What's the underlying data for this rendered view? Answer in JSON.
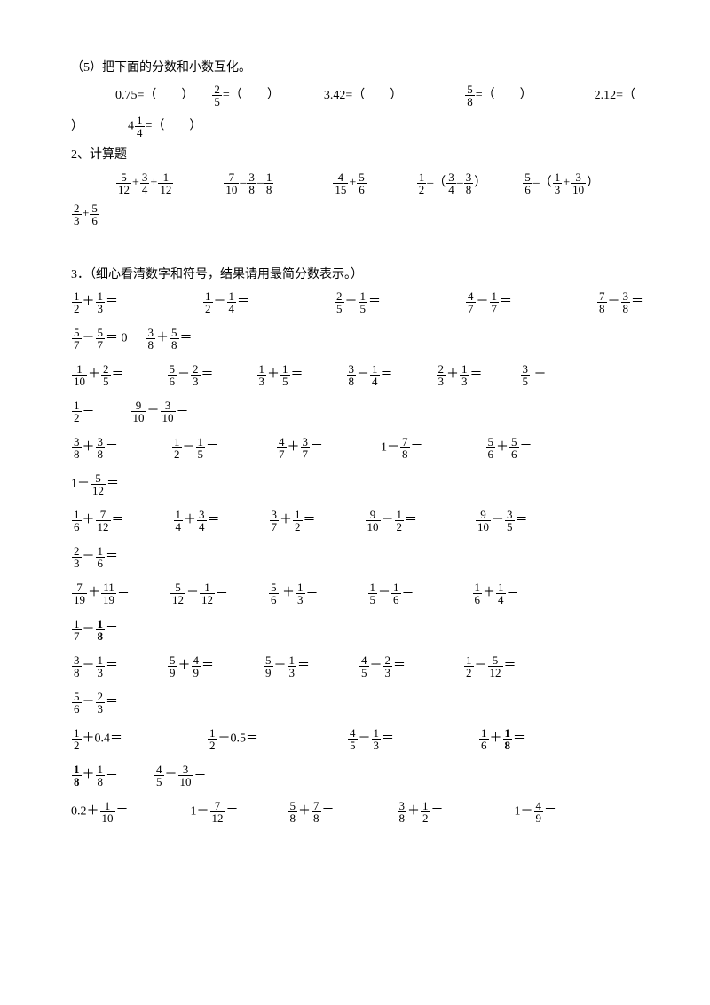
{
  "section5": {
    "title": "（5）把下面的分数和小数互化。",
    "items": [
      {
        "text_before": "0.75=（",
        "text_after": "）"
      },
      {
        "frac": {
          "n": "2",
          "d": "5"
        },
        "text_before": "",
        "text_after": "=（",
        "tail": "）"
      },
      {
        "text_before": "3.42=（",
        "text_after": "）"
      },
      {
        "frac": {
          "n": "5",
          "d": "8"
        },
        "text_before": "",
        "text_after": "=（",
        "tail": "）"
      },
      {
        "text_before": "2.12=（",
        "text_after": ""
      }
    ],
    "line2_close": "）",
    "line2_item": {
      "frac_n": "1",
      "frac_whole": "4",
      "frac_d": "4",
      "text_after": "=（",
      "tail": "）"
    }
  },
  "section2": {
    "title": "2、计算题",
    "problems": [
      [
        {
          "n": "5",
          "d": "12"
        },
        "+",
        {
          "n": "3",
          "d": "4"
        },
        "+",
        {
          "n": "1",
          "d": "12"
        }
      ],
      [
        {
          "n": "7",
          "d": "10"
        },
        "–",
        {
          "n": "3",
          "d": "8"
        },
        "–",
        {
          "n": "1",
          "d": "8"
        }
      ],
      [
        {
          "n": "4",
          "d": "15"
        },
        "+",
        {
          "n": "5",
          "d": "6"
        }
      ],
      [
        {
          "n": "1",
          "d": "2"
        },
        "–（",
        {
          "n": "3",
          "d": "4"
        },
        "–",
        {
          "n": "3",
          "d": "8"
        },
        "）"
      ],
      [
        {
          "n": "5",
          "d": "6"
        },
        "–（",
        {
          "n": "1",
          "d": "3"
        },
        "+",
        {
          "n": "3",
          "d": "10"
        },
        "）"
      ]
    ],
    "line2": [
      {
        "n": "2",
        "d": "3"
      },
      "+",
      {
        "n": "5",
        "d": "6"
      }
    ]
  },
  "section3": {
    "title": "3．（细心看清数字和符号，结果请用最简分数表示。）",
    "rows": [
      [
        [
          {
            "n": "1",
            "d": "2"
          },
          "＋",
          {
            "n": "1",
            "d": "3"
          },
          "＝"
        ],
        [
          {
            "n": "1",
            "d": "2"
          },
          "－",
          {
            "n": "1",
            "d": "4"
          },
          "＝"
        ],
        [
          {
            "n": "2",
            "d": "5"
          },
          "－",
          {
            "n": "1",
            "d": "5"
          },
          "＝"
        ],
        [
          {
            "n": "4",
            "d": "7"
          },
          "－",
          {
            "n": "1",
            "d": "7"
          },
          "＝"
        ],
        [
          {
            "n": "7",
            "d": "8"
          },
          "－",
          {
            "n": "3",
            "d": "8"
          },
          "＝"
        ]
      ],
      [
        [
          {
            "n": "5",
            "d": "7"
          },
          "－",
          {
            "n": "5",
            "d": "7"
          },
          "＝",
          "   0"
        ],
        [
          {
            "n": "3",
            "d": "8"
          },
          "＋",
          {
            "n": "5",
            "d": "8"
          },
          "＝"
        ]
      ],
      [
        [
          {
            "n": "1",
            "d": "10"
          },
          "＋",
          {
            "n": "2",
            "d": "5"
          },
          "＝"
        ],
        [
          {
            "n": "5",
            "d": "6"
          },
          "－",
          {
            "n": "2",
            "d": "3"
          },
          "＝"
        ],
        [
          {
            "n": "1",
            "d": "3"
          },
          "＋",
          {
            "n": "1",
            "d": "5"
          },
          "＝"
        ],
        [
          {
            "n": "3",
            "d": "8"
          },
          "－",
          {
            "n": "1",
            "d": "4"
          },
          "＝"
        ],
        [
          {
            "n": "2",
            "d": "3"
          },
          "＋",
          {
            "n": "1",
            "d": "3"
          },
          "＝"
        ],
        [
          {
            "n": "3",
            "d": "5"
          },
          " ＋"
        ]
      ],
      [
        [
          {
            "n": "1",
            "d": "2"
          },
          "＝"
        ],
        [
          {
            "n": "9",
            "d": "10"
          },
          "－",
          {
            "n": "3",
            "d": "10"
          },
          "＝"
        ]
      ],
      [
        [
          {
            "n": "3",
            "d": "8"
          },
          "＋",
          {
            "n": "3",
            "d": "8"
          },
          "＝"
        ],
        [
          {
            "n": "1",
            "d": "2"
          },
          "－",
          {
            "n": "1",
            "d": "5"
          },
          "＝"
        ],
        [
          {
            "n": "4",
            "d": "7"
          },
          "＋",
          {
            "n": "3",
            "d": "7"
          },
          "＝"
        ],
        [
          "1－",
          {
            "n": "7",
            "d": "8"
          },
          "＝"
        ],
        [
          {
            "n": "5",
            "d": "6"
          },
          "＋",
          {
            "n": "5",
            "d": "6"
          },
          "＝"
        ]
      ],
      [
        [
          "1－",
          {
            "n": "5",
            "d": "12"
          },
          "＝"
        ]
      ],
      [
        [
          {
            "n": "1",
            "d": "6"
          },
          "＋",
          {
            "n": "7",
            "d": "12"
          },
          "＝"
        ],
        [
          {
            "n": "1",
            "d": "4"
          },
          "＋",
          {
            "n": "3",
            "d": "4"
          },
          "＝"
        ],
        [
          {
            "n": "3",
            "d": "7"
          },
          "＋",
          {
            "n": "1",
            "d": "2"
          },
          "＝"
        ],
        [
          {
            "n": "9",
            "d": "10"
          },
          "－",
          {
            "n": "1",
            "d": "2"
          },
          "＝"
        ],
        [
          {
            "n": "9",
            "d": "10"
          },
          "－",
          {
            "n": "3",
            "d": "5"
          },
          "＝"
        ]
      ],
      [
        [
          {
            "n": "2",
            "d": "3"
          },
          "－",
          {
            "n": "1",
            "d": "6"
          },
          "＝"
        ]
      ],
      [
        [
          {
            "n": "7",
            "d": "19"
          },
          "＋",
          {
            "n": "11",
            "d": "19"
          },
          "＝"
        ],
        [
          {
            "n": "5",
            "d": "12"
          },
          "－",
          {
            "n": "1",
            "d": "12"
          },
          "＝"
        ],
        [
          {
            "n": "5",
            "d": "6"
          },
          " ＋",
          {
            "n": "1",
            "d": "3"
          },
          "＝"
        ],
        [
          {
            "n": "1",
            "d": "5"
          },
          "－",
          {
            "n": "1",
            "d": "6"
          },
          "＝"
        ],
        [
          {
            "n": "1",
            "d": "6"
          },
          "＋",
          {
            "n": "1",
            "d": "4"
          },
          "＝"
        ]
      ],
      [
        [
          {
            "n": "1",
            "d": "7"
          },
          "－",
          {
            "n": "1",
            "d": "8",
            "bold": true
          },
          "＝"
        ]
      ],
      [
        [
          {
            "n": "3",
            "d": "8"
          },
          "－",
          {
            "n": "1",
            "d": "3"
          },
          "＝"
        ],
        [
          {
            "n": "5",
            "d": "9"
          },
          "＋",
          {
            "n": "4",
            "d": "9"
          },
          "＝"
        ],
        [
          {
            "n": "5",
            "d": "9"
          },
          "－",
          {
            "n": "1",
            "d": "3"
          },
          "＝"
        ],
        [
          {
            "n": "4",
            "d": "5"
          },
          "－",
          {
            "n": "2",
            "d": "3"
          },
          "＝"
        ],
        [
          {
            "n": "1",
            "d": "2"
          },
          "－",
          {
            "n": "5",
            "d": "12"
          },
          "＝"
        ]
      ],
      [
        [
          {
            "n": "5",
            "d": "6"
          },
          "－",
          {
            "n": "2",
            "d": "3"
          },
          "＝"
        ]
      ],
      [
        [
          {
            "n": "1",
            "d": "2"
          },
          "＋0.4＝"
        ],
        [
          {
            "n": "1",
            "d": "2"
          },
          "－0.5＝"
        ],
        [
          {
            "n": "4",
            "d": "5"
          },
          "－",
          {
            "n": "1",
            "d": "3"
          },
          "＝"
        ],
        [
          {
            "n": "1",
            "d": "6"
          },
          "＋",
          {
            "n": "1",
            "d": "8",
            "bold": true
          },
          "＝"
        ]
      ],
      [
        [
          {
            "n": "1",
            "d": "8",
            "bold": true
          },
          "＋",
          {
            "n": "1",
            "d": "8"
          },
          "＝"
        ],
        [
          {
            "n": "4",
            "d": "5"
          },
          "－",
          {
            "n": "3",
            "d": "10"
          },
          "＝"
        ]
      ],
      [
        [
          "0.2＋",
          {
            "n": "1",
            "d": "10"
          },
          "＝"
        ],
        [
          "1－",
          {
            "n": "7",
            "d": "12"
          },
          "＝"
        ],
        [
          {
            "n": "5",
            "d": "8"
          },
          "＋",
          {
            "n": "7",
            "d": "8"
          },
          "＝"
        ],
        [
          {
            "n": "3",
            "d": "8"
          },
          "＋",
          {
            "n": "1",
            "d": "2"
          },
          "＝"
        ],
        [
          "1－",
          {
            "n": "4",
            "d": "9"
          },
          "＝"
        ]
      ]
    ],
    "row_gaps": [
      [
        95,
        95,
        95,
        95
      ],
      [
        20
      ],
      [
        48,
        48,
        48,
        48,
        42
      ],
      [
        40
      ],
      [
        60,
        65,
        65,
        70
      ],
      [],
      [
        55,
        55,
        55,
        65
      ],
      [],
      [
        45,
        45,
        55,
        65
      ],
      [],
      [
        55,
        55,
        55,
        65
      ],
      [],
      [
        95,
        100,
        95
      ],
      [
        40
      ],
      [
        70,
        55,
        70,
        80
      ]
    ]
  }
}
